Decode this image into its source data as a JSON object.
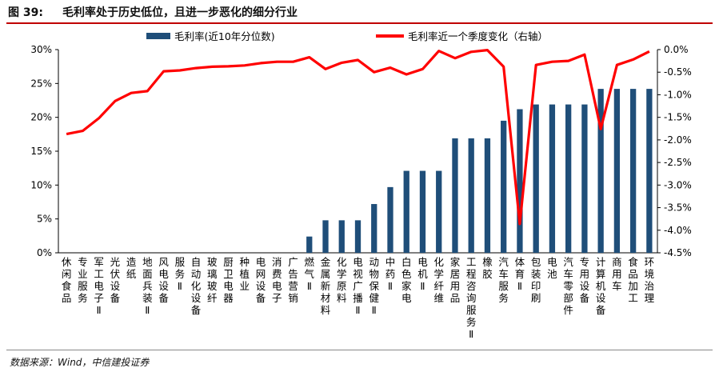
{
  "header": {
    "figure_label": "图 39:",
    "title": "毛利率处于历史低位，且进一步恶化的细分行业"
  },
  "footer": {
    "source": "数据来源：Wind，中信建投证券"
  },
  "colors": {
    "bar": "#1f4e79",
    "line": "#ff0000",
    "title_rule": "#c00000"
  },
  "chart_data": {
    "type": "bar",
    "categories": [
      "休闲食品",
      "专业服务",
      "军工电子Ⅱ",
      "光伏设备",
      "造纸",
      "地面兵装Ⅱ",
      "风电设备",
      "服务Ⅱ",
      "自动化设备",
      "玻璃玻纤",
      "厨卫电器",
      "种植业",
      "电网设备",
      "消费电子",
      "广告营销",
      "燃气Ⅱ",
      "金属新材料",
      "化学原料",
      "电视广播Ⅱ",
      "动物保健Ⅱ",
      "中药Ⅱ",
      "白色家电",
      "电机Ⅱ",
      "化学纤维",
      "家居用品",
      "工程咨询服务Ⅱ",
      "橡胶",
      "汽车服务",
      "体育Ⅱ",
      "包装印刷",
      "电池",
      "汽车零部件",
      "专用设备",
      "计算机设备",
      "商用车",
      "食品加工",
      "环境治理"
    ],
    "series": [
      {
        "name": "毛利率(近10年分位数)",
        "type": "bar",
        "axis": "left",
        "values": [
          0,
          0,
          0,
          0,
          0,
          0,
          0,
          0,
          0,
          0,
          0,
          0,
          0,
          0,
          0,
          2.4,
          4.8,
          4.8,
          4.8,
          7.2,
          9.7,
          12.1,
          12.1,
          12.1,
          16.9,
          16.9,
          16.9,
          19.5,
          21.2,
          21.9,
          21.9,
          21.9,
          21.9,
          24.2,
          24.2,
          24.2,
          24.2
        ]
      },
      {
        "name": "毛利率近一个季度变化（右轴）",
        "type": "line",
        "axis": "right",
        "values": [
          -1.87,
          -1.8,
          -1.52,
          -1.14,
          -0.96,
          -0.92,
          -0.48,
          -0.46,
          -0.41,
          -0.38,
          -0.37,
          -0.35,
          -0.3,
          -0.27,
          -0.27,
          -0.17,
          -0.43,
          -0.29,
          -0.23,
          -0.5,
          -0.4,
          -0.55,
          -0.43,
          -0.03,
          -0.19,
          -0.05,
          -0.01,
          -0.38,
          -3.86,
          -0.34,
          -0.27,
          -0.25,
          -0.11,
          -1.76,
          -0.34,
          -0.22,
          -0.04
        ]
      }
    ],
    "y_left": {
      "min": 0,
      "max": 30,
      "ticks": [
        "0%",
        "5%",
        "10%",
        "15%",
        "20%",
        "25%",
        "30%"
      ]
    },
    "y_right": {
      "min": -4.5,
      "max": 0,
      "ticks": [
        "0.0%",
        "-0.5%",
        "-1.0%",
        "-1.5%",
        "-2.0%",
        "-2.5%",
        "-3.0%",
        "-3.5%",
        "-4.0%",
        "-4.5%"
      ]
    },
    "legend": [
      "毛利率(近10年分位数)",
      "毛利率近一个季度变化（右轴）"
    ],
    "legend_position": "top",
    "grid": false
  }
}
